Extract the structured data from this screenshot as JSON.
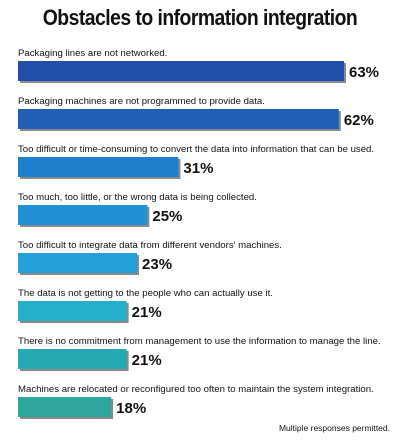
{
  "chart_data": {
    "type": "bar",
    "title": "Obstacles to information integration",
    "categories": [
      "Packaging lines are not networked.",
      "Packaging machines are not programmed to provide data.",
      "Too difficult or time-consuming to convert the data into information that can be used.",
      "Too much, too little, or the wrong data is being collected.",
      "Too difficult to integrate data from different vendors' machines.",
      "The data is not getting to the people who can actually use it.",
      "There is no commitment from management to use the information to manage the line.",
      "Machines are relocated or reconfigured too often to maintain the system integration."
    ],
    "values": [
      63,
      62,
      31,
      25,
      23,
      21,
      21,
      18
    ],
    "value_labels": [
      "63%",
      "62%",
      "31%",
      "25%",
      "23%",
      "21%",
      "21%",
      "18%"
    ],
    "bar_colors": [
      "#1f4fa8",
      "#1f5fb5",
      "#1e7fcc",
      "#2290d4",
      "#23a0d8",
      "#24aec8",
      "#25aab4",
      "#2ea69c"
    ],
    "xlim": [
      0,
      63
    ],
    "footnote": "Multiple responses permitted."
  }
}
